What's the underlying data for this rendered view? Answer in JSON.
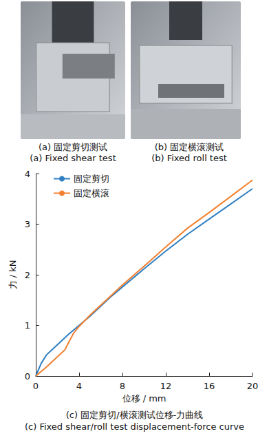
{
  "photos": [
    {
      "caption": "(a) 固定剪切测试",
      "caption_en": "(a) Fixed shear test"
    },
    {
      "caption": "(b) 固定横滚测试",
      "caption_en": "(b) Fixed roll test"
    }
  ],
  "chart_data": {
    "type": "line",
    "caption": "(c) 固定剪切/横滚测试位移-力曲线",
    "caption_en": "(c) Fixed shear/roll test displacement-force curve",
    "x_label": "位移 / mm",
    "y_label": "力 / kN",
    "xlim": [
      0,
      20
    ],
    "xticks": [
      0,
      4,
      8,
      12,
      16,
      20
    ],
    "ylim": [
      0,
      4
    ],
    "yticks": [
      0,
      1,
      2,
      3,
      4
    ],
    "grid": false,
    "legend": "upper left",
    "series": [
      {
        "name": "固定剪切",
        "color": "#2f7fc1",
        "x": [
          0,
          0.5,
          1,
          2,
          3,
          4,
          5,
          6,
          7,
          8,
          10,
          12,
          14,
          16,
          18,
          20
        ],
        "values": [
          0,
          0.25,
          0.42,
          0.62,
          0.82,
          1.0,
          1.18,
          1.38,
          1.58,
          1.76,
          2.12,
          2.47,
          2.8,
          3.1,
          3.4,
          3.7
        ]
      },
      {
        "name": "固定横滚",
        "color": "#f28030",
        "x": [
          0,
          1,
          2,
          2.7,
          3,
          3.5,
          4,
          5,
          6,
          7,
          8,
          10,
          12,
          14,
          16,
          18,
          20
        ],
        "values": [
          0,
          0.18,
          0.38,
          0.52,
          0.65,
          0.85,
          0.98,
          1.2,
          1.4,
          1.6,
          1.8,
          2.17,
          2.55,
          2.92,
          3.23,
          3.55,
          3.87
        ]
      }
    ]
  }
}
